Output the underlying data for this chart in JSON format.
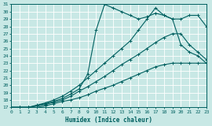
{
  "xlabel": "Humidex (Indice chaleur)",
  "background_color": "#c8e8e5",
  "grid_color": "#ffffff",
  "line_color": "#006060",
  "ylim": [
    17,
    31
  ],
  "xlim": [
    0,
    23
  ],
  "yticks": [
    17,
    18,
    19,
    20,
    21,
    22,
    23,
    24,
    25,
    26,
    27,
    28,
    29,
    30,
    31
  ],
  "xticks": [
    0,
    1,
    2,
    3,
    4,
    5,
    6,
    7,
    8,
    9,
    10,
    11,
    12,
    13,
    14,
    15,
    16,
    17,
    18,
    19,
    20,
    21,
    22,
    23
  ],
  "series": [
    {
      "x": [
        0,
        1,
        2,
        3,
        4,
        5,
        6,
        7,
        8,
        9,
        10,
        11,
        12,
        13,
        14,
        15,
        16,
        17,
        18,
        19,
        20,
        21,
        22,
        23
      ],
      "y": [
        17,
        17,
        17,
        17,
        17.2,
        17.5,
        17.8,
        18.0,
        18.3,
        18.7,
        19.2,
        19.6,
        20.0,
        20.5,
        21.0,
        21.5,
        22.0,
        22.5,
        22.8,
        23.0,
        23.0,
        23.0,
        23.0,
        23.0
      ]
    },
    {
      "x": [
        0,
        1,
        2,
        3,
        4,
        5,
        6,
        7,
        8,
        9,
        10,
        11,
        12,
        13,
        14,
        15,
        16,
        17,
        18,
        19,
        20,
        21,
        22,
        23
      ],
      "y": [
        17,
        17,
        17,
        17.2,
        17.4,
        17.7,
        18.0,
        18.5,
        19.2,
        19.8,
        20.5,
        21.2,
        22.0,
        22.8,
        23.5,
        24.2,
        25.0,
        25.8,
        26.5,
        27.0,
        27.0,
        25.5,
        24.5,
        23.5
      ]
    },
    {
      "x": [
        0,
        1,
        2,
        3,
        4,
        5,
        6,
        7,
        8,
        9,
        10,
        11,
        12,
        13,
        14,
        15,
        16,
        17,
        18,
        19,
        20,
        21,
        22,
        23
      ],
      "y": [
        17,
        17,
        17,
        17.3,
        17.6,
        18.0,
        18.5,
        19.2,
        20.0,
        21.0,
        22.0,
        23.0,
        24.0,
        25.0,
        26.0,
        27.5,
        29.0,
        30.5,
        29.5,
        29.0,
        29.0,
        29.5,
        29.5,
        28.0
      ]
    },
    {
      "x": [
        0,
        1,
        2,
        3,
        4,
        5,
        6,
        7,
        8,
        9,
        10,
        11,
        12,
        13,
        14,
        15,
        16,
        17,
        18,
        19,
        20,
        21,
        22,
        23
      ],
      "y": [
        17,
        17,
        17,
        17.2,
        17.5,
        17.8,
        18.2,
        18.8,
        19.5,
        21.5,
        27.5,
        31.0,
        30.5,
        30.0,
        29.5,
        29.0,
        29.3,
        29.8,
        29.5,
        29.0,
        25.5,
        24.5,
        24.0,
        23.0
      ]
    }
  ]
}
